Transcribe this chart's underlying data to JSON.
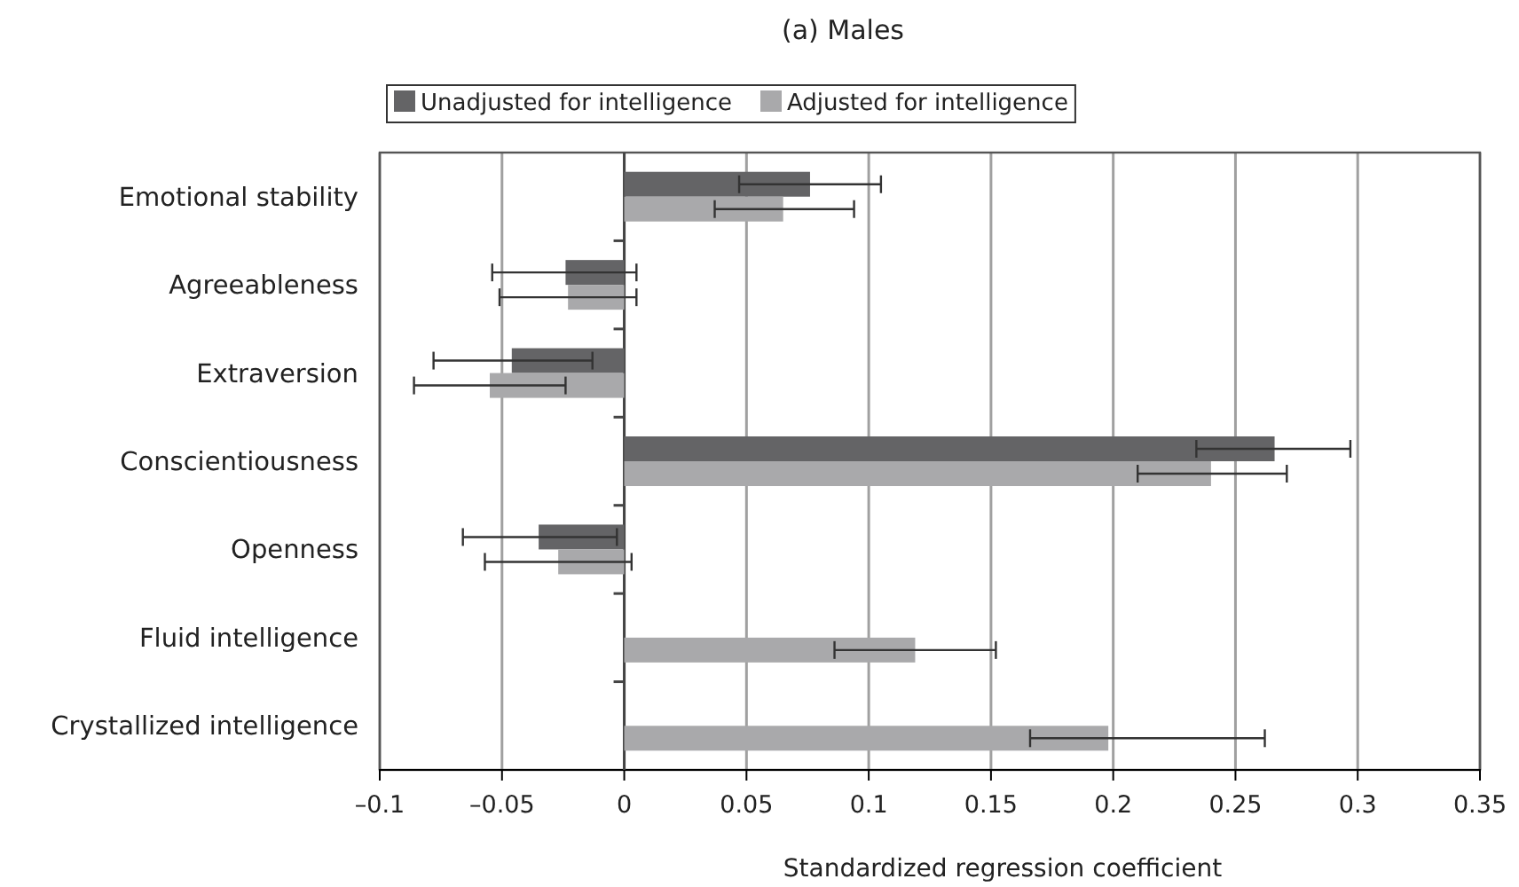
{
  "chart_data": {
    "type": "bar",
    "orientation": "horizontal",
    "title": "(a)  Males",
    "xlabel": "Standardized regression coefficient",
    "categories": [
      "Emotional stability",
      "Agreeableness",
      "Extraversion",
      "Conscientiousness",
      "Openness",
      "Fluid intelligence",
      "Crystallized intelligence"
    ],
    "series": [
      {
        "name": "Unadjusted for intelligence",
        "color": "#646466",
        "values": [
          0.076,
          -0.024,
          -0.046,
          0.266,
          -0.035,
          null,
          null
        ],
        "errors": [
          [
            0.047,
            0.105
          ],
          [
            -0.054,
            0.005
          ],
          [
            -0.078,
            -0.013
          ],
          [
            0.234,
            0.297
          ],
          [
            -0.066,
            -0.003
          ],
          null,
          null
        ]
      },
      {
        "name": "Adjusted for intelligence",
        "color": "#a9a9ab",
        "values": [
          0.065,
          -0.023,
          -0.055,
          0.24,
          -0.027,
          0.119,
          0.198
        ],
        "errors": [
          [
            0.037,
            0.094
          ],
          [
            -0.051,
            0.005
          ],
          [
            -0.086,
            -0.024
          ],
          [
            0.21,
            0.271
          ],
          [
            -0.057,
            0.003
          ],
          [
            0.086,
            0.152
          ],
          [
            0.166,
            0.262
          ]
        ]
      }
    ],
    "xlim": [
      -0.1,
      0.35
    ],
    "xticks": [
      {
        "value": -0.1,
        "label": "–0.1"
      },
      {
        "value": -0.05,
        "label": "–0.05"
      },
      0,
      0.05,
      0.1,
      0.15,
      0.2,
      0.25,
      0.3,
      0.35
    ],
    "grid": "x",
    "legend": "top"
  }
}
